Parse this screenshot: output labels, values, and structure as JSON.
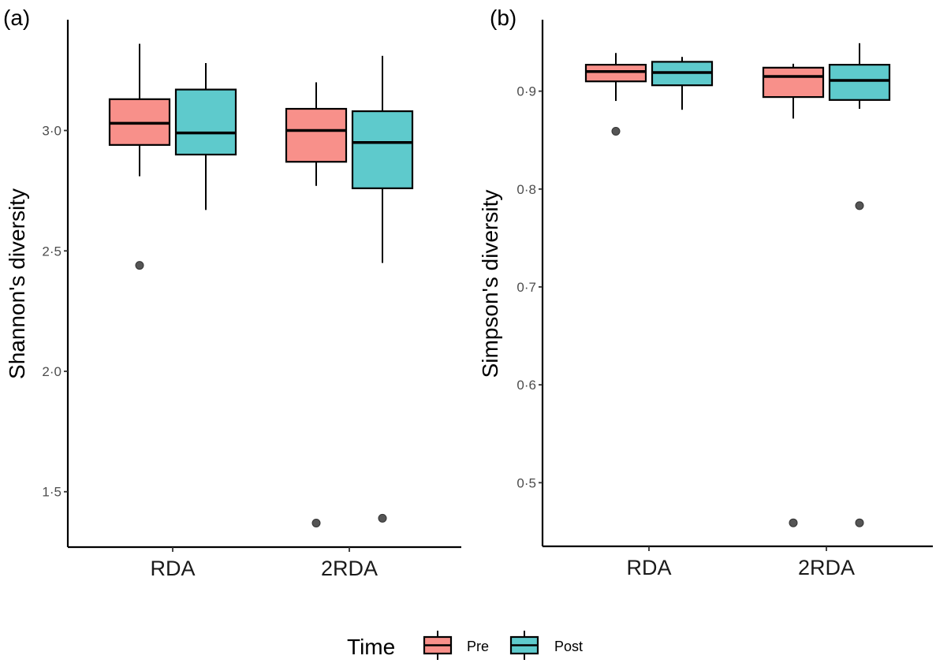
{
  "chart_data": [
    {
      "type": "boxplot",
      "panel": "(a)",
      "title": "",
      "xlabel": "",
      "ylabel": "Shannon's diversity",
      "ylim": [
        1.27,
        3.46
      ],
      "yticks": [
        1.5,
        2.0,
        2.5,
        3.0
      ],
      "ytick_labels": [
        "1·5",
        "2·0",
        "2·5",
        "3·0"
      ],
      "grid": false,
      "categories": [
        "RDA",
        "2RDA"
      ],
      "series": [
        {
          "name": "Pre",
          "color": "#F8766D",
          "boxes": [
            {
              "category": "RDA",
              "whisker_low": 2.81,
              "q1": 2.94,
              "median": 3.03,
              "q3": 3.13,
              "whisker_high": 3.36,
              "outliers": [
                2.44
              ]
            },
            {
              "category": "2RDA",
              "whisker_low": 2.77,
              "q1": 2.87,
              "median": 3.0,
              "q3": 3.09,
              "whisker_high": 3.2,
              "outliers": [
                1.37
              ]
            }
          ]
        },
        {
          "name": "Post",
          "color": "#00BFC4",
          "boxes": [
            {
              "category": "RDA",
              "whisker_low": 2.67,
              "q1": 2.9,
              "median": 2.99,
              "q3": 3.17,
              "whisker_high": 3.28,
              "outliers": []
            },
            {
              "category": "2RDA",
              "whisker_low": 2.45,
              "q1": 2.76,
              "median": 2.95,
              "q3": 3.08,
              "whisker_high": 3.31,
              "outliers": [
                1.39
              ]
            }
          ]
        }
      ]
    },
    {
      "type": "boxplot",
      "panel": "(b)",
      "title": "",
      "xlabel": "",
      "ylabel": "Simpson's diversity",
      "ylim": [
        0.435,
        0.973
      ],
      "yticks": [
        0.5,
        0.6,
        0.7,
        0.8,
        0.9
      ],
      "ytick_labels": [
        "0·5",
        "0·6",
        "0·7",
        "0·8",
        "0·9"
      ],
      "grid": false,
      "categories": [
        "RDA",
        "2RDA"
      ],
      "series": [
        {
          "name": "Pre",
          "color": "#F8766D",
          "boxes": [
            {
              "category": "RDA",
              "whisker_low": 0.89,
              "q1": 0.91,
              "median": 0.92,
              "q3": 0.927,
              "whisker_high": 0.939,
              "outliers": [
                0.859
              ]
            },
            {
              "category": "2RDA",
              "whisker_low": 0.872,
              "q1": 0.894,
              "median": 0.915,
              "q3": 0.924,
              "whisker_high": 0.928,
              "outliers": [
                0.459
              ]
            }
          ]
        },
        {
          "name": "Post",
          "color": "#00BFC4",
          "boxes": [
            {
              "category": "RDA",
              "whisker_low": 0.881,
              "q1": 0.906,
              "median": 0.919,
              "q3": 0.93,
              "whisker_high": 0.935,
              "outliers": []
            },
            {
              "category": "2RDA",
              "whisker_low": 0.882,
              "q1": 0.891,
              "median": 0.911,
              "q3": 0.927,
              "whisker_high": 0.949,
              "outliers": [
                0.783,
                0.459
              ]
            }
          ]
        }
      ]
    }
  ],
  "legend": {
    "title": "Time",
    "placement": "bottom-center",
    "items": [
      {
        "label": "Pre",
        "color": "#F8766D"
      },
      {
        "label": "Post",
        "color": "#00BFC4"
      }
    ]
  },
  "style": {
    "pre_fill": "#F8908A",
    "post_fill": "#5ECACC",
    "outlier_color": "#555555",
    "axis_color": "#000000"
  }
}
